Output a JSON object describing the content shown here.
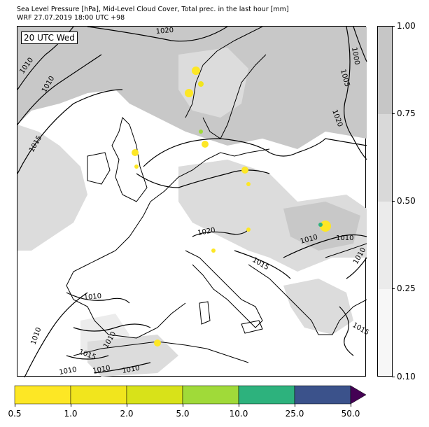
{
  "title": {
    "line1": "Sea Level Pressure [hPa], Mid-Level Cloud Cover, Total prec. in the last hour [mm]",
    "line2": "WRF 27.07.2019 18:00 UTC +98"
  },
  "map": {
    "time_label": "20 UTC Wed",
    "isobar_labels": [
      "1020",
      "1000",
      "1005",
      "1010",
      "1010",
      "1015",
      "1020",
      "1020",
      "1010",
      "1015",
      "1010",
      "1010",
      "1015",
      "1010",
      "1010",
      "1010",
      "1010",
      "1015",
      "1010",
      "1010"
    ],
    "colors": {
      "land_line": "#000000",
      "cloud_high": "#c8c8c8",
      "cloud_mid": "#dcdcdc",
      "cloud_low": "#ececec",
      "precip_light": "#fde725",
      "precip_moderate": "#a0da39",
      "precip_heavy": "#2db27d"
    }
  },
  "cloud_colorbar": {
    "ticks": [
      "1.00",
      "0.75",
      "0.50",
      "0.25",
      "0.10"
    ],
    "levels": [
      0.1,
      0.25,
      0.5,
      0.75,
      1.0
    ],
    "colors": [
      "#f7f7f7",
      "#ebebeb",
      "#d9d9d9",
      "#c6c6c6"
    ]
  },
  "precip_colorbar": {
    "ticks": [
      "0.5",
      "1.0",
      "2.0",
      "5.0",
      "10.0",
      "25.0",
      "50.0"
    ],
    "levels": [
      0.5,
      1.0,
      2.0,
      5.0,
      10.0,
      25.0,
      50.0
    ],
    "colors": [
      "#fde725",
      "#f1e51d",
      "#d8e219",
      "#a0da39",
      "#2db27d",
      "#3b528b",
      "#440154"
    ]
  }
}
